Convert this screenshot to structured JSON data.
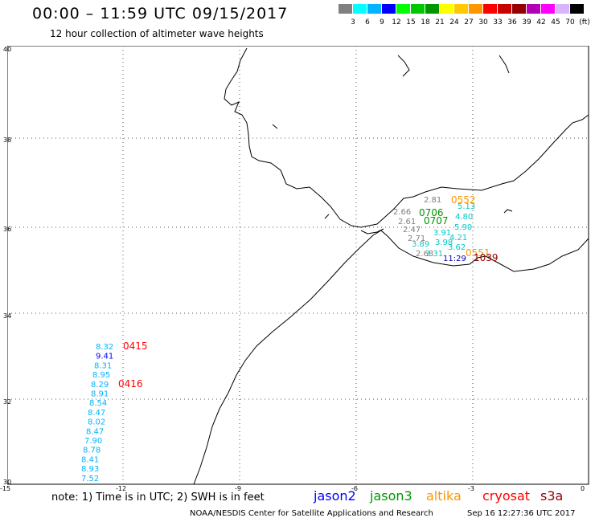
{
  "header": {
    "title": "00:00 – 11:59 UTC 09/15/2017",
    "subtitle": "12 hour collection of altimeter wave heights"
  },
  "color_scale": {
    "colors": [
      "#808080",
      "#00ffff",
      "#00b4ff",
      "#0000ff",
      "#00ff00",
      "#00c800",
      "#009600",
      "#ffff00",
      "#ffc800",
      "#ff9600",
      "#ff0000",
      "#c80000",
      "#960000",
      "#b400b4",
      "#ff00ff",
      "#d8b4ff",
      "#000000"
    ],
    "labels": [
      "3",
      "6",
      "9",
      "12",
      "15",
      "18",
      "21",
      "24",
      "27",
      "30",
      "33",
      "36",
      "39",
      "42",
      "45",
      "70",
      "(ft)"
    ]
  },
  "axes": {
    "lat_labels": [
      "40",
      "38",
      "36",
      "34",
      "32",
      "30"
    ],
    "lon_labels": [
      "-15",
      "-12",
      "-9",
      "-6",
      "-3",
      "0"
    ]
  },
  "map_labels": {
    "west_values": [
      "8.32",
      "9.41",
      "8.31",
      "8.95",
      "8.29",
      "8.91",
      "8.54",
      "8.47",
      "8.02",
      "8.47",
      "7.90",
      "8.78",
      "8.41",
      "8.93",
      "7.52"
    ],
    "west_times": [
      "0415",
      "0416"
    ],
    "alboran_gray": [
      "2.81",
      "2.66",
      "2.61",
      "2.47",
      "2.71",
      "2.68"
    ],
    "alboran_cyan": [
      "5.13",
      "4.80",
      "5.90",
      "4.21",
      "3.62",
      "3.91",
      "3.89",
      "3.98",
      "3.31"
    ],
    "alboran_dark": "11:29",
    "alboran_times": {
      "orange_a": "0552",
      "green_a": "0706",
      "green_b": "0707",
      "orange_b": "0551",
      "red_a": "1039"
    }
  },
  "footer": {
    "note": "note: 1) Time is in UTC; 2) SWH is in feet",
    "sat_jason2": "jason2",
    "sat_jason3": "jason3",
    "sat_altika": "altika",
    "sat_cryosat": "cryosat",
    "sat_s3a": "s3a",
    "credit": "NOAA/NESDIS Center for Satellite Applications and Research",
    "timestamp": "Sep 16 12:27:36 UTC 2017"
  }
}
